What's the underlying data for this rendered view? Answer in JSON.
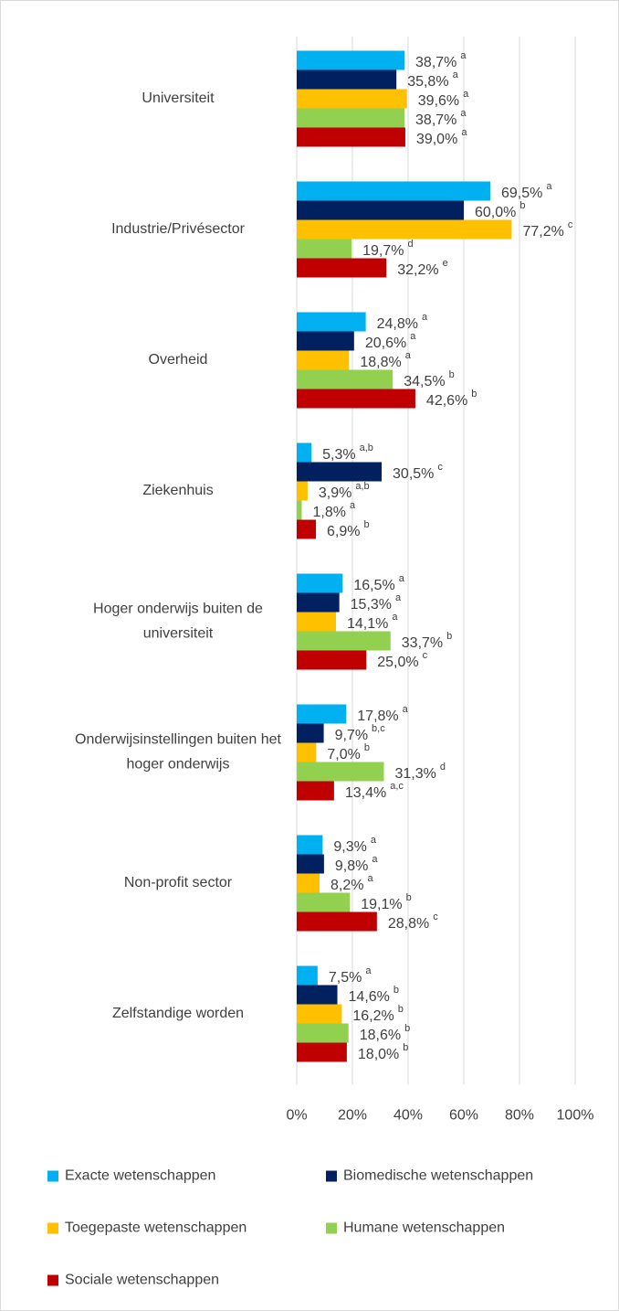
{
  "chart_data": {
    "type": "hbar",
    "categories": [
      [
        "Universiteit"
      ],
      [
        "Industrie/Privésector"
      ],
      [
        "Overheid"
      ],
      [
        "Ziekenhuis"
      ],
      [
        "Hoger onderwijs buiten de",
        "universiteit"
      ],
      [
        "Onderwijsinstellingen buiten het",
        "hoger onderwijs"
      ],
      [
        "Non-profit sector"
      ],
      [
        "Zelfstandige worden"
      ]
    ],
    "series": [
      {
        "name": "Exacte wetenschappen",
        "color": "#00b0f0",
        "values": [
          38.7,
          69.5,
          24.8,
          5.3,
          16.5,
          17.8,
          9.3,
          7.5
        ],
        "value_labels": [
          "38,7%",
          "69,5%",
          "24,8%",
          "5,3%",
          "16,5%",
          "17,8%",
          "9,3%",
          "7,5%"
        ],
        "significance": [
          "a",
          "a",
          "a",
          "a,b",
          "a",
          "a",
          "a",
          "a"
        ]
      },
      {
        "name": "Biomedische wetenschappen",
        "color": "#002060",
        "values": [
          35.8,
          60.0,
          20.6,
          30.5,
          15.3,
          9.7,
          9.8,
          14.6
        ],
        "value_labels": [
          "35,8%",
          "60,0%",
          "20,6%",
          "30,5%",
          "15,3%",
          "9,7%",
          "9,8%",
          "14,6%"
        ],
        "significance": [
          "a",
          "b",
          "a",
          "c",
          "a",
          "b,c",
          "a",
          "b"
        ]
      },
      {
        "name": "Toegepaste wetenschappen",
        "color": "#ffc000",
        "values": [
          39.6,
          77.2,
          18.8,
          3.9,
          14.1,
          7.0,
          8.2,
          16.2
        ],
        "value_labels": [
          "39,6%",
          "77,2%",
          "18,8%",
          "3,9%",
          "14,1%",
          "7,0%",
          "8,2%",
          "16,2%"
        ],
        "significance": [
          "a",
          "c",
          "a",
          "a,b",
          "a",
          "b",
          "a",
          "b"
        ]
      },
      {
        "name": "Humane wetenschappen",
        "color": "#92d050",
        "values": [
          38.7,
          19.7,
          34.5,
          1.8,
          33.7,
          31.3,
          19.1,
          18.6
        ],
        "value_labels": [
          "38,7%",
          "19,7%",
          "34,5%",
          "1,8%",
          "33,7%",
          "31,3%",
          "19,1%",
          "18,6%"
        ],
        "significance": [
          "a",
          "d",
          "b",
          "a",
          "b",
          "d",
          "b",
          "b"
        ]
      },
      {
        "name": "Sociale wetenschappen",
        "color": "#c00000",
        "values": [
          39.0,
          32.2,
          42.6,
          6.9,
          25.0,
          13.4,
          28.8,
          18.0
        ],
        "value_labels": [
          "39,0%",
          "32,2%",
          "42,6%",
          "6,9%",
          "25,0%",
          "13,4%",
          "28,8%",
          "18,0%"
        ],
        "significance": [
          "a",
          "e",
          "b",
          "b",
          "c",
          "a,c",
          "c",
          "b"
        ]
      }
    ],
    "xlim": [
      0,
      100
    ],
    "xticks": [
      {
        "value": 0,
        "label": "0%"
      },
      {
        "value": 20,
        "label": "20%"
      },
      {
        "value": 40,
        "label": "40%"
      },
      {
        "value": 60,
        "label": "60%"
      },
      {
        "value": 80,
        "label": "80%"
      },
      {
        "value": 100,
        "label": "100%"
      }
    ],
    "grid": true,
    "legend": "bottom"
  }
}
